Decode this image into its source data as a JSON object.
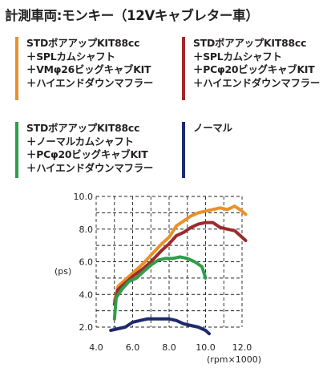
{
  "title": "計測車両:モンキー（12Vキャブレター車）",
  "legend": [
    {
      "color": "#e8922a",
      "lines": [
        "STDボアアップKIT88cc",
        "＋SPLカムシャフト",
        "＋VMφ26ビッグキャブKIT",
        "＋ハイエンドダウンマフラー"
      ]
    },
    {
      "color": "#9e2a2b",
      "lines": [
        "STDボアアップKIT88cc",
        "＋SPLカムシャフト",
        "＋PCφ20ビッグキャブKIT",
        "＋ハイエンドダウンマフラー"
      ]
    },
    {
      "color": "#2e9e4a",
      "lines": [
        "STDボアアップKIT88cc",
        "＋ノーマルカムシャフト",
        "＋PCφ20ビッグキャブKIT",
        "＋ハイエンドダウンマフラー"
      ]
    },
    {
      "color": "#1f2a6b",
      "lines": [
        "ノーマル"
      ]
    }
  ],
  "chart_data": {
    "type": "line",
    "xlabel": "(rpm×1000)",
    "ylabel": "(ps)",
    "xlim": [
      4.0,
      12.0
    ],
    "ylim": [
      2.0,
      10.0
    ],
    "x_ticks": [
      "4.0",
      "6.0",
      "8.0",
      "10.0",
      "12.0"
    ],
    "y_ticks": [
      "2.0",
      "4.0",
      "6.0",
      "8.0",
      "10.0"
    ],
    "grid": "dashed",
    "series": [
      {
        "color": "#e8922a",
        "points": [
          [
            5.0,
            3.6
          ],
          [
            5.2,
            4.5
          ],
          [
            5.6,
            4.9
          ],
          [
            6.0,
            5.3
          ],
          [
            6.6,
            5.9
          ],
          [
            7.0,
            6.4
          ],
          [
            7.6,
            7.1
          ],
          [
            8.0,
            7.5
          ],
          [
            8.4,
            8.2
          ],
          [
            8.8,
            8.5
          ],
          [
            9.2,
            8.8
          ],
          [
            9.6,
            9.0
          ],
          [
            10.0,
            9.1
          ],
          [
            10.4,
            9.2
          ],
          [
            10.8,
            9.3
          ],
          [
            11.2,
            9.2
          ],
          [
            11.6,
            9.4
          ],
          [
            12.0,
            9.1
          ],
          [
            12.2,
            8.9
          ]
        ]
      },
      {
        "color": "#9e2a2b",
        "points": [
          [
            5.0,
            3.4
          ],
          [
            5.2,
            4.3
          ],
          [
            5.6,
            4.7
          ],
          [
            6.0,
            5.1
          ],
          [
            6.6,
            5.6
          ],
          [
            7.0,
            6.0
          ],
          [
            7.6,
            6.7
          ],
          [
            8.0,
            7.1
          ],
          [
            8.4,
            7.6
          ],
          [
            8.8,
            7.8
          ],
          [
            9.2,
            8.1
          ],
          [
            9.6,
            8.3
          ],
          [
            10.0,
            8.4
          ],
          [
            10.4,
            8.4
          ],
          [
            10.8,
            8.1
          ],
          [
            11.2,
            8.0
          ],
          [
            11.6,
            7.9
          ],
          [
            12.0,
            7.5
          ],
          [
            12.2,
            7.3
          ]
        ]
      },
      {
        "color": "#2e9e4a",
        "points": [
          [
            5.0,
            2.5
          ],
          [
            5.1,
            3.8
          ],
          [
            5.4,
            4.3
          ],
          [
            5.8,
            4.8
          ],
          [
            6.2,
            5.0
          ],
          [
            6.6,
            5.4
          ],
          [
            7.0,
            5.8
          ],
          [
            7.4,
            6.1
          ],
          [
            7.8,
            6.2
          ],
          [
            8.2,
            6.2
          ],
          [
            8.6,
            6.3
          ],
          [
            9.0,
            6.2
          ],
          [
            9.4,
            6.0
          ],
          [
            9.8,
            5.7
          ],
          [
            10.0,
            5.0
          ]
        ]
      },
      {
        "color": "#1f2a6b",
        "points": [
          [
            4.8,
            1.8
          ],
          [
            5.2,
            1.9
          ],
          [
            5.6,
            2.0
          ],
          [
            6.0,
            2.3
          ],
          [
            6.4,
            2.4
          ],
          [
            6.8,
            2.5
          ],
          [
            7.2,
            2.5
          ],
          [
            7.6,
            2.5
          ],
          [
            8.0,
            2.5
          ],
          [
            8.4,
            2.4
          ],
          [
            8.8,
            2.2
          ],
          [
            9.2,
            2.1
          ],
          [
            9.6,
            2.0
          ],
          [
            10.0,
            1.8
          ],
          [
            10.2,
            1.6
          ]
        ]
      }
    ]
  }
}
